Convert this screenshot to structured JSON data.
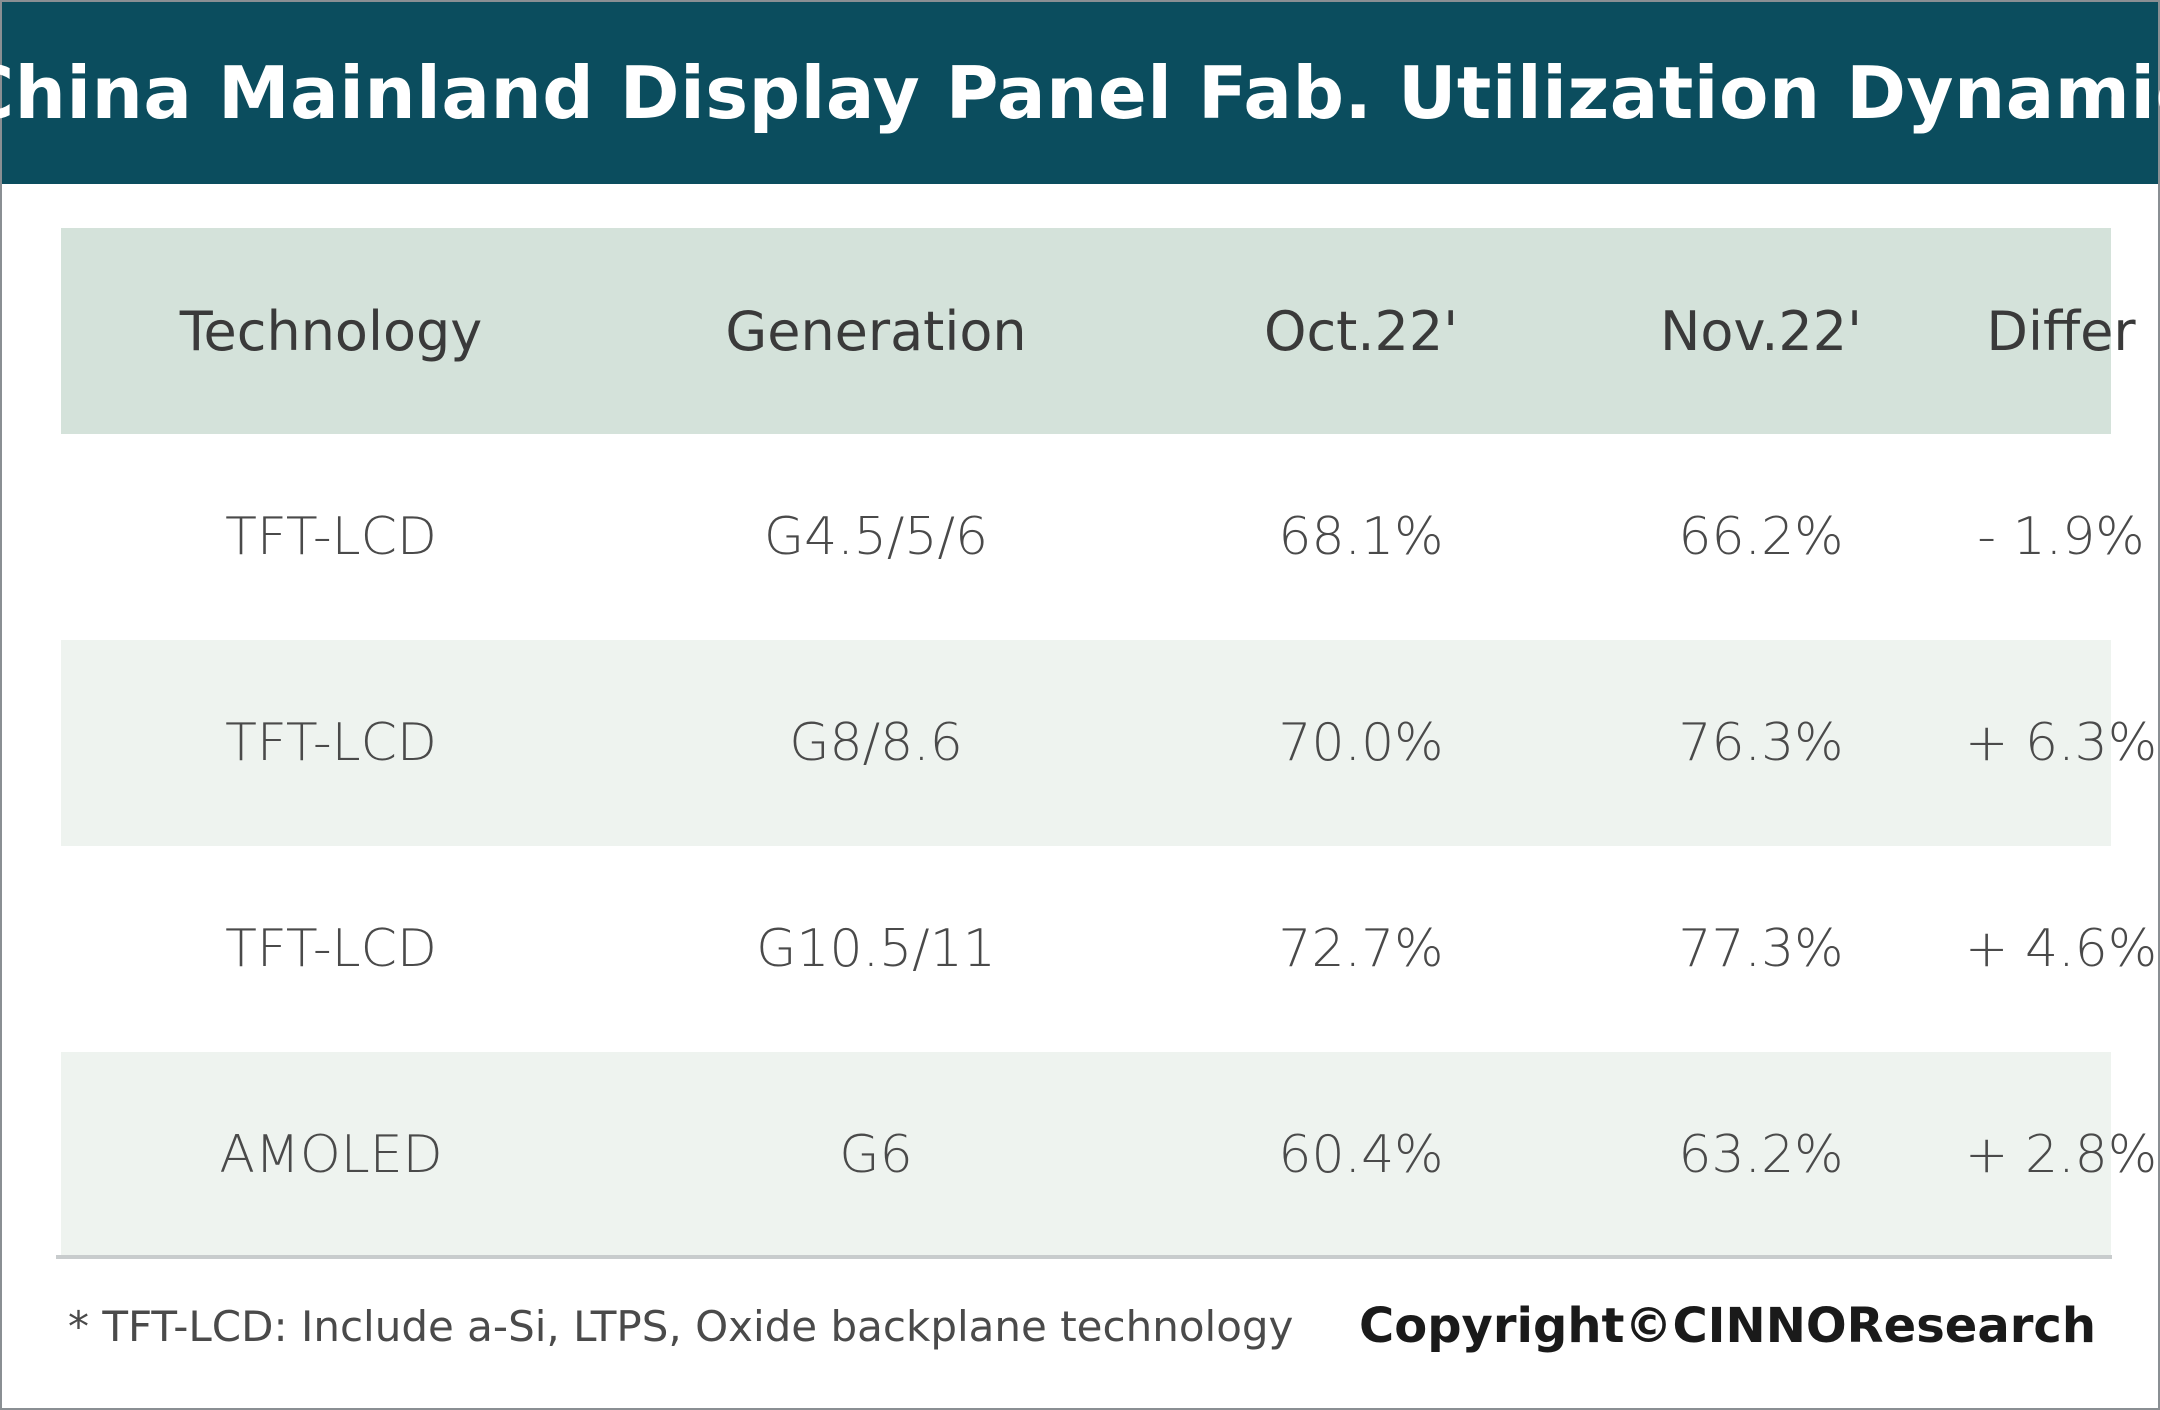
{
  "title": "China Mainland Display Panel Fab. Utilization Dynamic",
  "chart_data": {
    "type": "table",
    "columns": [
      "Technology",
      "Generation",
      "Oct.22'",
      "Nov.22'",
      "Differ"
    ],
    "rows": [
      [
        "TFT-LCD",
        "G4.5/5/6",
        "68.1%",
        "66.2%",
        "- 1.9%"
      ],
      [
        "TFT-LCD",
        "G8/8.6",
        "70.0%",
        "76.3%",
        "+ 6.3%"
      ],
      [
        "TFT-LCD",
        "G10.5/11",
        "72.7%",
        "77.3%",
        "+ 4.6%"
      ],
      [
        "AMOLED",
        "G6",
        "60.4%",
        "63.2%",
        "+ 2.8%"
      ]
    ]
  },
  "footnote": "* TFT-LCD: Include a-Si, LTPS, Oxide backplane technology",
  "copyright": "Copyright©CINNOResearch",
  "colors": {
    "title_bar": "#0b4d5e",
    "header_row": "#d4e2da",
    "band_row": "#eef3ef"
  }
}
